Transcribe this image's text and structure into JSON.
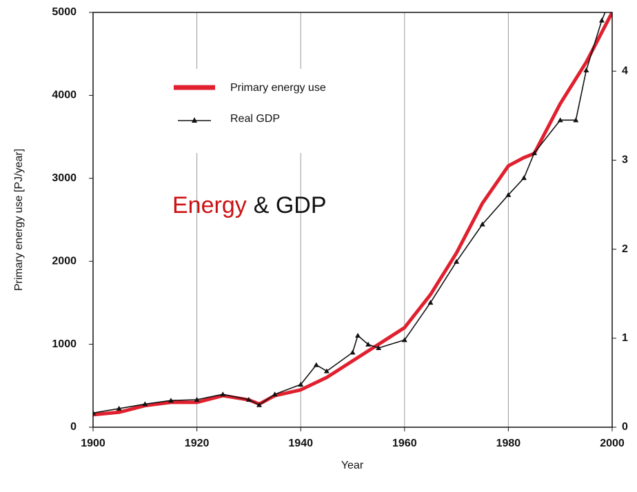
{
  "chart_data": {
    "type": "line",
    "annotation": [
      "Energy",
      "& GDP"
    ],
    "x_label": "Year",
    "y_label": "Primary energy use [PJ/year]",
    "xlim": [
      1900,
      2000
    ],
    "xticks": [
      1900,
      1920,
      1940,
      1960,
      1980,
      2000
    ],
    "grid_x": [
      1920,
      1940,
      1960,
      1980
    ],
    "ylim": [
      0,
      5000
    ],
    "yticks": [
      0,
      1000,
      2000,
      3000,
      4000,
      5000
    ],
    "y2lim": [
      0,
      4.66
    ],
    "y2ticks": [
      0,
      1,
      2,
      3,
      4
    ],
    "series": [
      {
        "name": "Primary energy use",
        "color": "#e0202e",
        "axis": "y",
        "x": [
          1900,
          1905,
          1910,
          1915,
          1920,
          1925,
          1930,
          1932,
          1935,
          1940,
          1945,
          1950,
          1955,
          1960,
          1965,
          1970,
          1975,
          1980,
          1983,
          1985,
          1990,
          1995,
          2000
        ],
        "values": [
          150,
          180,
          260,
          300,
          300,
          380,
          330,
          280,
          380,
          450,
          600,
          800,
          1000,
          1200,
          1600,
          2100,
          2700,
          3150,
          3250,
          3300,
          3900,
          4400,
          5000
        ]
      },
      {
        "name": "Real GDP",
        "color": "#111111",
        "axis": "y2",
        "x": [
          1900,
          1905,
          1910,
          1915,
          1920,
          1925,
          1930,
          1932,
          1935,
          1940,
          1943,
          1945,
          1950,
          1951,
          1953,
          1955,
          1960,
          1965,
          1970,
          1975,
          1980,
          1983,
          1985,
          1990,
          1993,
          1995,
          1998,
          1999
        ],
        "values": [
          0.16,
          0.21,
          0.26,
          0.3,
          0.31,
          0.37,
          0.31,
          0.25,
          0.37,
          0.48,
          0.7,
          0.63,
          0.84,
          1.03,
          0.93,
          0.89,
          0.98,
          1.4,
          1.86,
          2.28,
          2.61,
          2.8,
          3.08,
          3.45,
          3.45,
          4.01,
          4.57,
          4.71
        ]
      }
    ]
  }
}
